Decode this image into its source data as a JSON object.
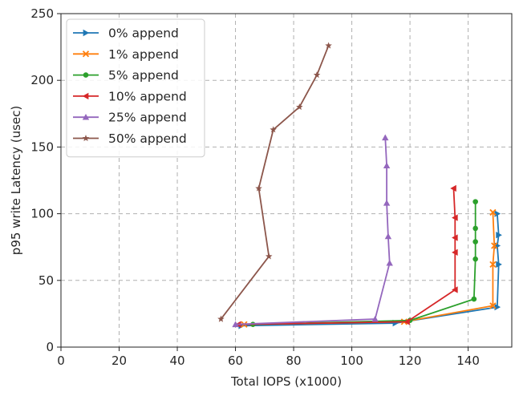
{
  "chart_data": {
    "type": "line",
    "xlabel": "Total IOPS (x1000)",
    "ylabel": "p95 write Latency (usec)",
    "xlim": [
      0,
      155
    ],
    "ylim": [
      0,
      250
    ],
    "xticks": [
      0,
      20,
      40,
      60,
      80,
      100,
      120,
      140
    ],
    "yticks": [
      0,
      50,
      100,
      150,
      200,
      250
    ],
    "grid": true,
    "legend_position": "top-left",
    "series": [
      {
        "name": "  0% append",
        "color": "#1f77b4",
        "marker": "triangle-right",
        "points": [
          [
            62,
            16
          ],
          [
            115,
            18
          ],
          [
            150,
            30
          ],
          [
            150.5,
            62
          ],
          [
            150,
            76
          ],
          [
            150.5,
            84
          ],
          [
            150,
            100
          ]
        ]
      },
      {
        "name": "  1% append",
        "color": "#ff7f0e",
        "marker": "x",
        "points": [
          [
            63,
            17
          ],
          [
            118,
            19
          ],
          [
            148.5,
            31
          ],
          [
            148.5,
            62
          ],
          [
            149,
            76
          ],
          [
            148.5,
            101
          ]
        ]
      },
      {
        "name": "  5% append",
        "color": "#2ca02c",
        "marker": "circle",
        "points": [
          [
            66,
            17
          ],
          [
            120,
            20
          ],
          [
            142,
            36
          ],
          [
            142.5,
            66
          ],
          [
            142.5,
            79
          ],
          [
            142.5,
            89
          ],
          [
            142.5,
            109
          ]
        ]
      },
      {
        "name": "10% append",
        "color": "#d62728",
        "marker": "triangle-left",
        "points": [
          [
            61,
            17
          ],
          [
            119,
            19
          ],
          [
            135.5,
            43
          ],
          [
            135.5,
            71
          ],
          [
            135.5,
            82
          ],
          [
            135.5,
            97
          ],
          [
            135,
            119
          ]
        ]
      },
      {
        "name": "25% append",
        "color": "#9467bd",
        "marker": "triangle-up",
        "points": [
          [
            60,
            17
          ],
          [
            108,
            21
          ],
          [
            113,
            63
          ],
          [
            112.5,
            83
          ],
          [
            112,
            108
          ],
          [
            112,
            136
          ],
          [
            111.5,
            157
          ]
        ]
      },
      {
        "name": "50% append",
        "color": "#8c564b",
        "marker": "star",
        "points": [
          [
            55,
            21
          ],
          [
            71.5,
            68
          ],
          [
            68,
            119
          ],
          [
            73,
            163
          ],
          [
            82,
            180
          ],
          [
            88,
            204
          ],
          [
            92,
            226
          ]
        ]
      }
    ]
  }
}
